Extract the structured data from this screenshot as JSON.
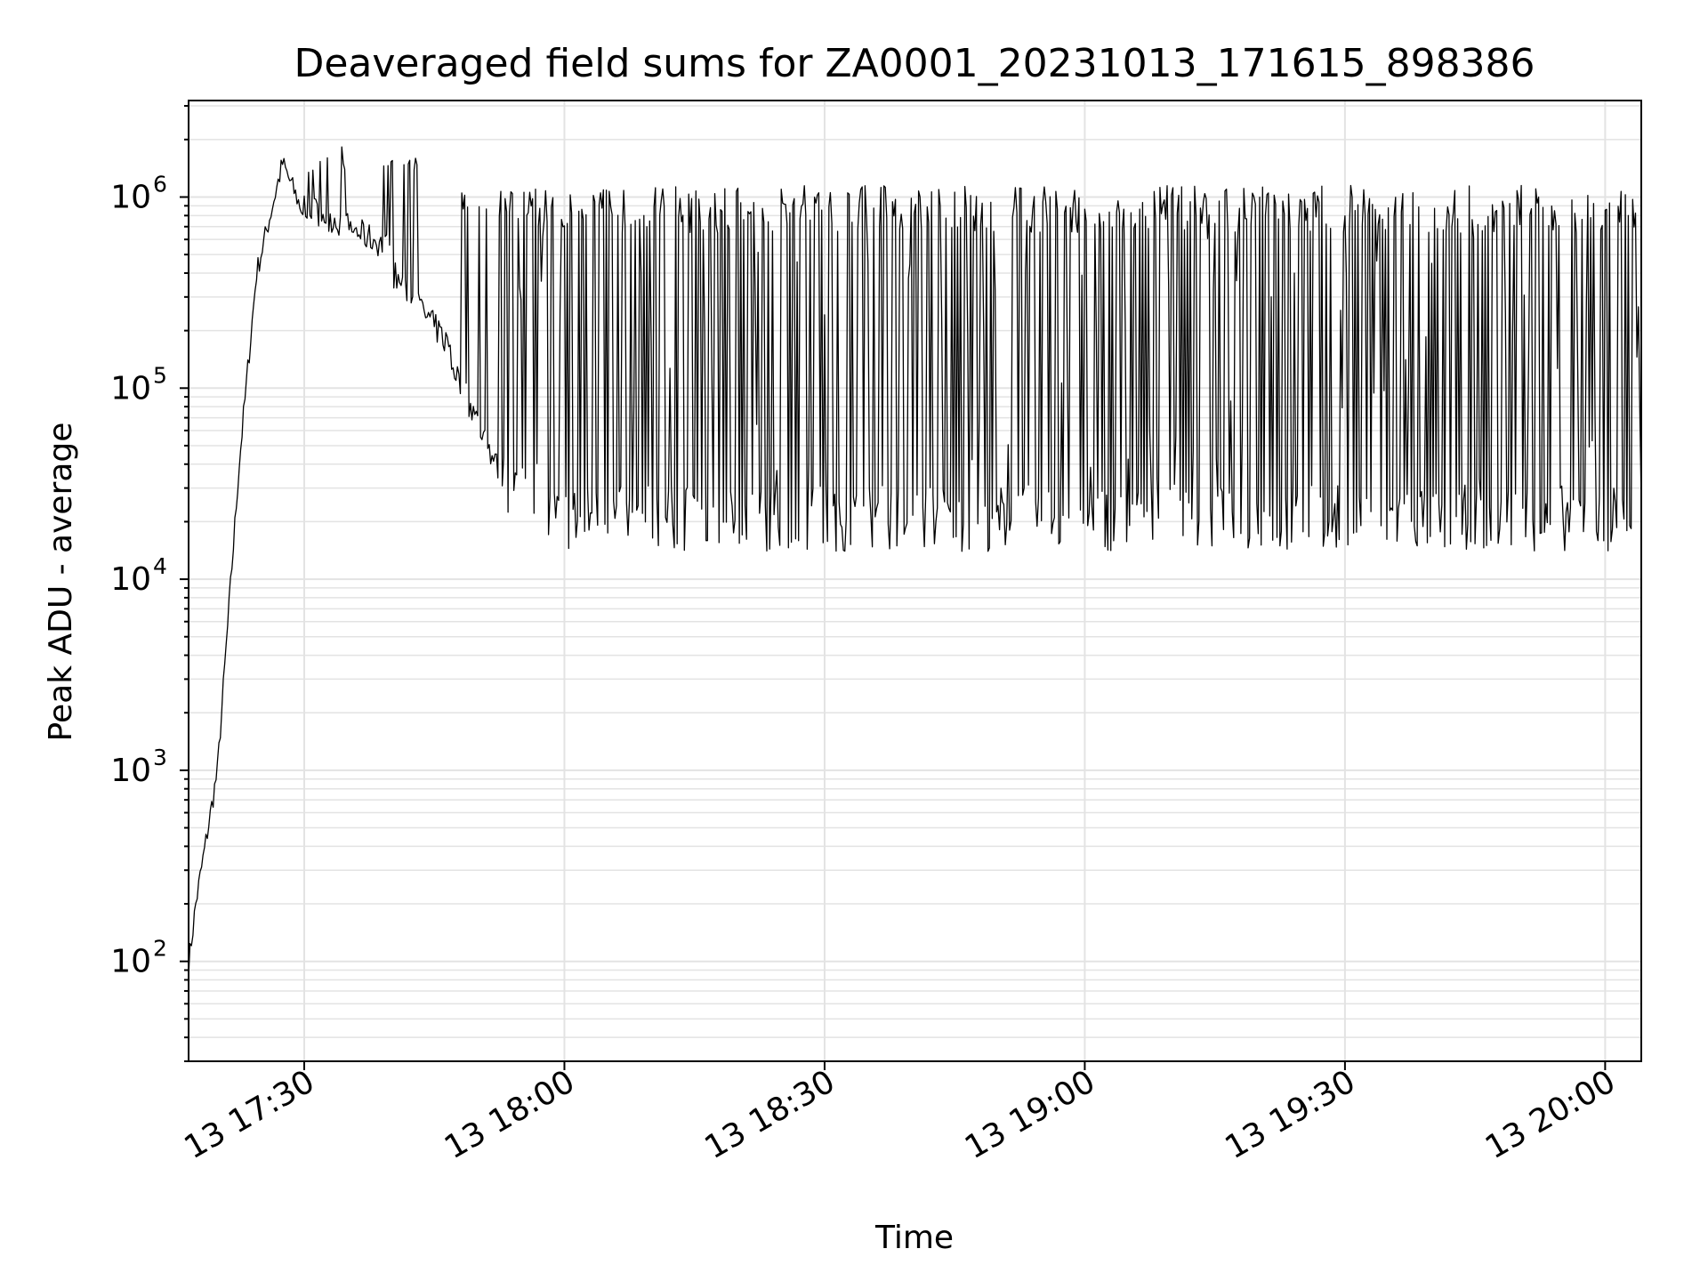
{
  "chart_data": {
    "type": "line",
    "title": "Deaveraged field sums for ZA0001_20231013_171615_898386",
    "xlabel": "Time",
    "ylabel": "Peak ADU - average",
    "yscale": "log",
    "xlim": [
      "2023-10-13 17:16:40",
      "2023-10-13 20:04:10"
    ],
    "ylim": [
      30,
      3200000
    ],
    "grid": "on (major and minor)",
    "color": "#000000",
    "x_ticks": [
      "13 17:30",
      "13 18:00",
      "13 18:30",
      "13 19:00",
      "13 19:30",
      "13 20:00"
    ],
    "y_ticks": [
      {
        "base": "10",
        "exp": "2"
      },
      {
        "base": "10",
        "exp": "3"
      },
      {
        "base": "10",
        "exp": "4"
      },
      {
        "base": "10",
        "exp": "5"
      },
      {
        "base": "10",
        "exp": "6"
      }
    ],
    "segments": [
      {
        "from": "17:16:40",
        "to": "17:17:30",
        "pattern": "rising",
        "y_start": 95,
        "y_end": 200
      },
      {
        "from": "17:17:30",
        "to": "17:20:00",
        "pattern": "rising",
        "y_start": 200,
        "y_end": 1000
      },
      {
        "from": "17:20:00",
        "to": "17:22:30",
        "pattern": "rising",
        "y_start": 1000,
        "y_end": 40000
      },
      {
        "from": "17:22:30",
        "to": "17:24:30",
        "pattern": "rising",
        "y_start": 40000,
        "y_end": 400000
      },
      {
        "from": "17:24:30",
        "to": "17:27:30",
        "pattern": "rising",
        "y_start": 400000,
        "y_end": 1500000
      },
      {
        "from": "17:27:30",
        "to": "17:30:00",
        "pattern": "falling",
        "y_start": 1500000,
        "y_end": 800000
      },
      {
        "from": "17:30:00",
        "to": "17:40:00",
        "pattern": "noisy-spikes",
        "y_low": 500000,
        "y_high": 1900000
      },
      {
        "from": "17:40:00",
        "to": "17:47:00",
        "pattern": "noisy-decline",
        "y_low": 150000,
        "y_high": 1600000
      },
      {
        "from": "17:47:00",
        "to": "17:53:00",
        "pattern": "noisy-decline",
        "y_low": 30000,
        "y_high": 1100000
      },
      {
        "from": "17:53:00",
        "to": "17:58:00",
        "pattern": "oscillating",
        "y_low": 20000,
        "y_high": 1100000
      },
      {
        "from": "17:58:00",
        "to": "20:04:10",
        "pattern": "oscillating",
        "y_low": 14000,
        "y_high": 1150000
      }
    ]
  }
}
